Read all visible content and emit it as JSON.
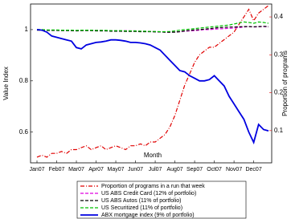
{
  "chart_data": {
    "type": "line",
    "xlabel": "Month",
    "ylabel": "Value Index",
    "y2label": "Proportion of programs",
    "categories": [
      "Jan07",
      null,
      null,
      null,
      "Feb07",
      null,
      null,
      null,
      "Mar07",
      null,
      null,
      null,
      "Apr07",
      null,
      null,
      null,
      "May07",
      null,
      null,
      null,
      "Jun07",
      null,
      null,
      null,
      "Jul07",
      null,
      null,
      null,
      "Aug07",
      null,
      null,
      null,
      "Sep07",
      null,
      null,
      null,
      "Oct07",
      null,
      null,
      null,
      "Nov07",
      null,
      null,
      null,
      "Dec07",
      null,
      null,
      null
    ],
    "ylim": [
      0.48,
      1.1
    ],
    "yticks": [
      0.6,
      0.8,
      1
    ],
    "y2lim": [
      0.015,
      0.434
    ],
    "y2ticks": [
      0.1,
      0.2,
      0.3,
      0.4
    ],
    "y2color": "#e00000",
    "series": [
      {
        "name": "Proportion of programs in a run that week",
        "color": "#e00000",
        "dash": "dashdot",
        "axis": "y2",
        "values": [
          0.03,
          0.035,
          0.03,
          0.04,
          0.04,
          0.045,
          0.04,
          0.05,
          0.05,
          0.055,
          0.06,
          0.05,
          0.055,
          0.06,
          0.05,
          0.055,
          0.06,
          0.055,
          0.05,
          0.06,
          0.06,
          0.065,
          0.06,
          0.07,
          0.07,
          0.08,
          0.09,
          0.11,
          0.14,
          0.18,
          0.22,
          0.25,
          0.28,
          0.3,
          0.31,
          0.32,
          0.32,
          0.33,
          0.34,
          0.35,
          0.36,
          0.38,
          0.4,
          0.42,
          0.39,
          0.41,
          0.42,
          0.43
        ]
      },
      {
        "name": "US ABS Credit Card (12% of portfolio)",
        "color": "#e000e0",
        "dash": "dash",
        "values": [
          1.0,
          0.999,
          0.998,
          0.998,
          0.997,
          0.998,
          0.997,
          0.996,
          0.996,
          0.997,
          0.997,
          0.998,
          0.997,
          0.997,
          0.996,
          0.996,
          0.995,
          0.995,
          0.996,
          0.995,
          0.995,
          0.994,
          0.993,
          0.993,
          0.992,
          0.991,
          0.99,
          0.99,
          0.991,
          0.992,
          0.994,
          0.995,
          0.996,
          0.998,
          1.0,
          1.0,
          1.002,
          1.003,
          1.004,
          1.005,
          1.006,
          1.008,
          1.01,
          1.012,
          1.01,
          1.011,
          1.012,
          1.01
        ]
      },
      {
        "name": "US ABS Autos (11% of portfolio)",
        "color": "#000000",
        "dash": "dash",
        "values": [
          0.998,
          0.998,
          0.997,
          0.997,
          0.997,
          0.996,
          0.996,
          0.996,
          0.995,
          0.996,
          0.996,
          0.996,
          0.995,
          0.995,
          0.995,
          0.994,
          0.994,
          0.994,
          0.993,
          0.993,
          0.993,
          0.992,
          0.992,
          0.992,
          0.991,
          0.991,
          0.99,
          0.99,
          0.99,
          0.992,
          0.995,
          0.997,
          0.999,
          1.0,
          1.002,
          1.004,
          1.006,
          1.008,
          1.009,
          1.01,
          1.01,
          1.011,
          1.012,
          1.012,
          1.011,
          1.012,
          1.013,
          1.012
        ]
      },
      {
        "name": "US Securitized (11% of portfolio)",
        "color": "#00c000",
        "dash": "dash",
        "values": [
          1.0,
          1.0,
          0.999,
          0.999,
          0.999,
          0.998,
          0.998,
          0.998,
          0.997,
          0.998,
          0.998,
          0.998,
          0.997,
          0.997,
          0.997,
          0.996,
          0.996,
          0.996,
          0.995,
          0.995,
          0.995,
          0.994,
          0.994,
          0.993,
          0.993,
          0.992,
          0.992,
          0.993,
          0.995,
          0.998,
          1.0,
          1.002,
          1.004,
          1.006,
          1.008,
          1.01,
          1.012,
          1.014,
          1.016,
          1.018,
          1.022,
          1.026,
          1.03,
          1.028,
          1.025,
          1.03,
          1.028,
          1.025
        ]
      },
      {
        "name": "ABX mortgage index (9% of portfolio)",
        "color": "#0000e0",
        "dash": "solid",
        "values": [
          1.0,
          0.998,
          0.99,
          0.975,
          0.97,
          0.965,
          0.96,
          0.955,
          0.93,
          0.925,
          0.94,
          0.945,
          0.95,
          0.952,
          0.955,
          0.96,
          0.96,
          0.958,
          0.955,
          0.95,
          0.95,
          0.948,
          0.945,
          0.94,
          0.93,
          0.92,
          0.9,
          0.88,
          0.86,
          0.84,
          0.835,
          0.82,
          0.81,
          0.8,
          0.8,
          0.805,
          0.82,
          0.8,
          0.78,
          0.74,
          0.71,
          0.68,
          0.65,
          0.6,
          0.56,
          0.63,
          0.61,
          0.605
        ]
      }
    ]
  }
}
